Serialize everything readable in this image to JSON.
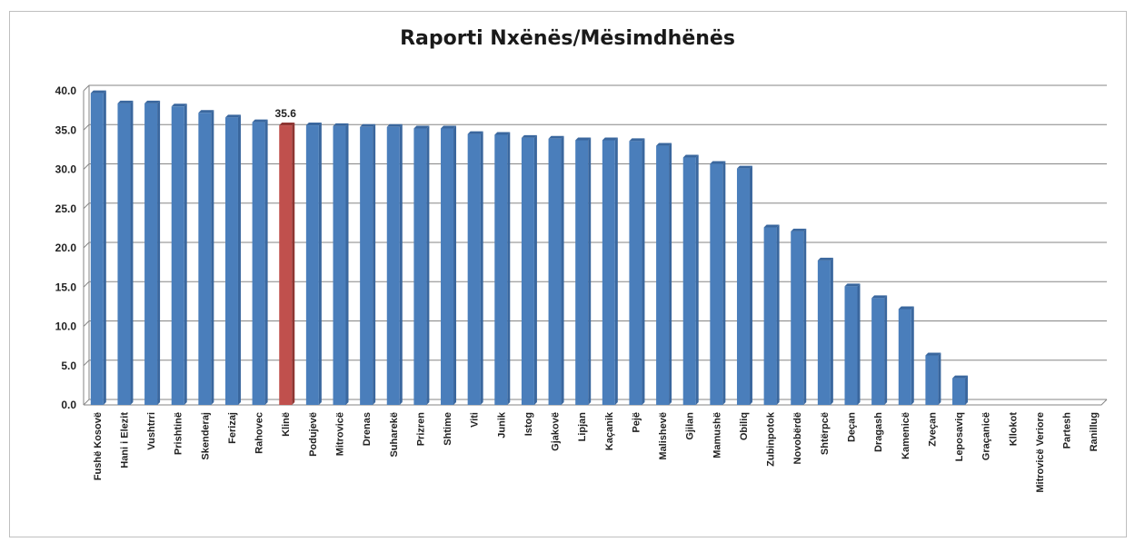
{
  "chart_data": {
    "type": "bar",
    "title": "Raporti Nxënës/Mësimdhënës",
    "xlabel": "",
    "ylabel": "",
    "ylim": [
      0,
      40
    ],
    "yticks": [
      "0.0",
      "5.0",
      "10.0",
      "15.0",
      "20.0",
      "25.0",
      "30.0",
      "35.0",
      "40.0"
    ],
    "grid": true,
    "categories": [
      "Fushë Kosovë",
      "Hani i Elezit",
      "Vushtrri",
      "Prishtinë",
      "Skenderaj",
      "Ferizaj",
      "Rahovec",
      "Klinë",
      "Podujevë",
      "Mitrovicë",
      "Drenas",
      "Suharekë",
      "Prizren",
      "Shtime",
      "Viti",
      "Junik",
      "Istog",
      "Gjakovë",
      "Lipjan",
      "Kaçanik",
      "Pejë",
      "Malishevë",
      "Gjilan",
      "Mamushë",
      "Obiliq",
      "Zubinpotok",
      "Novobërdë",
      "Shtërpcë",
      "Deçan",
      "Dragash",
      "Kamenicë",
      "Zveçan",
      "Leposaviq",
      "Graçanicë",
      "Kllokot",
      "Mitrovicë Veriore",
      "Partesh",
      "Ranillug"
    ],
    "values": [
      39.7,
      38.4,
      38.4,
      38.0,
      37.2,
      36.6,
      36.0,
      35.6,
      35.6,
      35.5,
      35.4,
      35.4,
      35.2,
      35.2,
      34.5,
      34.4,
      34.0,
      33.9,
      33.7,
      33.7,
      33.6,
      33.0,
      31.5,
      30.7,
      30.1,
      22.6,
      22.1,
      18.4,
      15.1,
      13.6,
      12.2,
      6.3,
      3.4,
      0,
      0,
      0,
      0,
      0
    ],
    "highlight_index": 7,
    "highlight_label": "35.6",
    "colors": {
      "bar": "#4a7ebb",
      "bar_edge": "#3a679e",
      "highlight": "#c0504d",
      "highlight_edge": "#8e3532",
      "grid": "#868686",
      "axis": "#868686"
    }
  }
}
